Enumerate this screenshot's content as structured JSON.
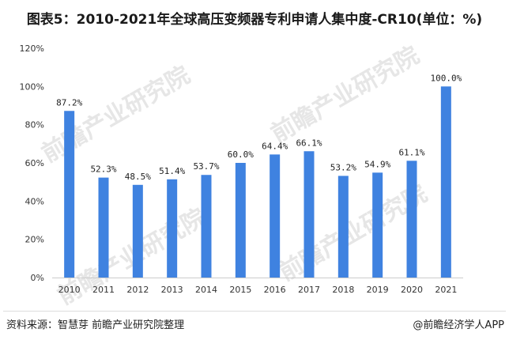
{
  "title": "图表5：2010-2021年全球高压变频器专利申请人集中度-CR10(单位：%)",
  "source": "资料来源：智慧芽 前瞻产业研究院整理",
  "credit": "@前瞻经济学人APP",
  "watermark": "前瞻产业研究院",
  "colors": {
    "bar": "#3f82e0",
    "grid": "#e6e6e6",
    "text": "#333333"
  },
  "chart_data": {
    "type": "bar",
    "title": "图表5：2010-2021年全球高压变频器专利申请人集中度-CR10(单位：%)",
    "xlabel": "",
    "ylabel": "",
    "categories": [
      "2010",
      "2011",
      "2012",
      "2013",
      "2014",
      "2015",
      "2016",
      "2017",
      "2018",
      "2019",
      "2020",
      "2021"
    ],
    "values": [
      87.2,
      52.3,
      48.5,
      51.4,
      53.7,
      60.0,
      64.4,
      66.1,
      53.2,
      54.9,
      61.1,
      100.0
    ],
    "data_labels": [
      "87.2%",
      "52.3%",
      "48.5%",
      "51.4%",
      "53.7%",
      "60.0%",
      "64.4%",
      "66.1%",
      "53.2%",
      "54.9%",
      "61.1%",
      "100.0%"
    ],
    "y_ticks": [
      0,
      20,
      40,
      60,
      80,
      100,
      120
    ],
    "y_tick_labels": [
      "0%",
      "20%",
      "40%",
      "60%",
      "80%",
      "100%",
      "120%"
    ],
    "ylim": [
      0,
      120
    ],
    "grid": false,
    "legend": "none"
  }
}
